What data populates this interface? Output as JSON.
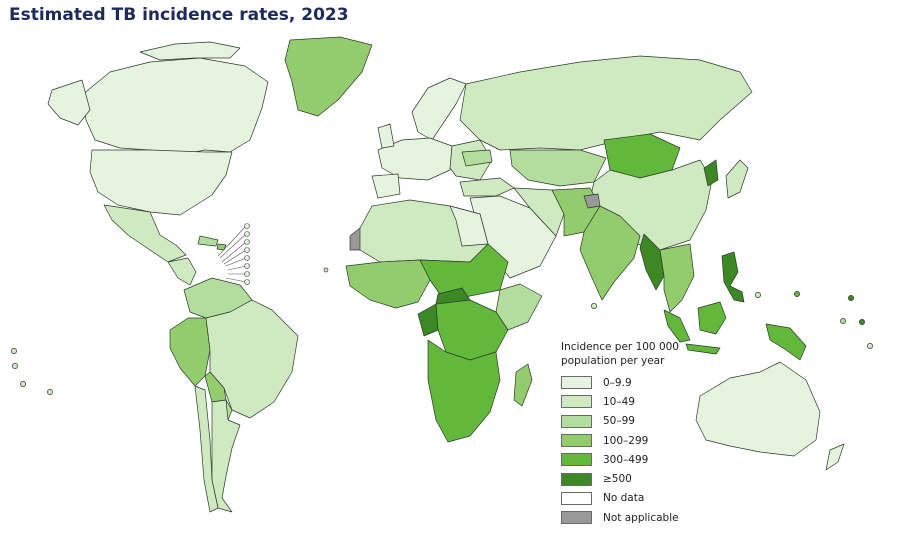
{
  "title": "Estimated TB incidence rates, 2023",
  "legend": {
    "title_line1": "Incidence per 100 000",
    "title_line2": "population per year",
    "items": [
      {
        "label": "0–9.9",
        "color": "#e5f3df"
      },
      {
        "label": "10–49",
        "color": "#cfe9c0"
      },
      {
        "label": "50–99",
        "color": "#b3dd9c"
      },
      {
        "label": "100–299",
        "color": "#93cc6d"
      },
      {
        "label": "300–499",
        "color": "#62b83a"
      },
      {
        "label": "≥500",
        "color": "#3b8824"
      },
      {
        "label": "No data",
        "color": "#ffffff"
      },
      {
        "label": "Not applicable",
        "color": "#999999"
      }
    ]
  }
}
